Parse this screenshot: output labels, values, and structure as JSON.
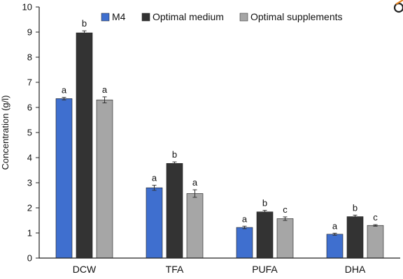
{
  "chart_data": {
    "type": "bar",
    "categories": [
      "DCW",
      "TFA",
      "PUFA",
      "DHA"
    ],
    "series": [
      {
        "name": "M4",
        "color": "#3f6fcf",
        "values": [
          6.35,
          2.8,
          1.22,
          0.95
        ],
        "errors": [
          0.05,
          0.1,
          0.05,
          0.04
        ],
        "letters": [
          "a",
          "a",
          "a",
          "a"
        ]
      },
      {
        "name": "Optimal medium",
        "color": "#333333",
        "values": [
          8.97,
          3.77,
          1.84,
          1.65
        ],
        "errors": [
          0.08,
          0.06,
          0.06,
          0.06
        ],
        "letters": [
          "b",
          "b",
          "b",
          "b"
        ]
      },
      {
        "name": "Optimal supplements",
        "color": "#a6a6a6",
        "values": [
          6.3,
          2.57,
          1.57,
          1.3
        ],
        "errors": [
          0.12,
          0.15,
          0.07,
          0.03
        ],
        "letters": [
          "a",
          "a",
          "c",
          "c"
        ]
      }
    ],
    "title": "",
    "xlabel": "",
    "ylabel": "Concentration (g/l)",
    "ylim": [
      0,
      10
    ],
    "yticks": [
      0,
      1,
      2,
      3,
      4,
      5,
      6,
      7,
      8,
      9,
      10
    ],
    "grid": false,
    "legend_position": "top-right"
  },
  "corner_icon": "circle-arrow-icon"
}
